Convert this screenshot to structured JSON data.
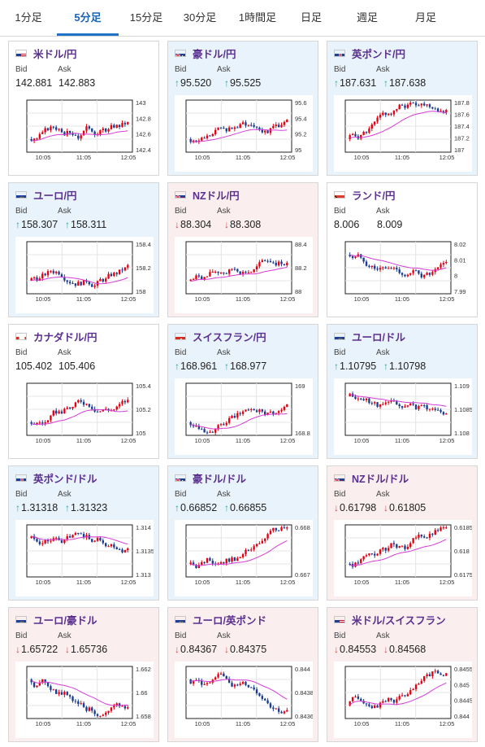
{
  "tabs": [
    {
      "label": "1分足",
      "active": false
    },
    {
      "label": "5分足",
      "active": true
    },
    {
      "label": "15分足",
      "active": false
    },
    {
      "label": "30分足",
      "active": false
    },
    {
      "label": "1時間足",
      "active": false
    },
    {
      "label": "日足",
      "active": false
    },
    {
      "label": "週足",
      "active": false
    },
    {
      "label": "月足",
      "active": false
    }
  ],
  "labels": {
    "bid": "Bid",
    "ask": "Ask"
  },
  "colors": {
    "title": "#5a2f8f",
    "up_arrow": "#2aa4a0",
    "down_arrow": "#d24a4a",
    "up_card": "#e9f3fb",
    "down_card": "#fbeeee",
    "candle_up": "#e60012",
    "candle_down": "#1a3d8f",
    "ma_line": "#d63cd6"
  },
  "pairs": [
    {
      "name": "米ドル/円",
      "flag": "us",
      "bid": "142.881",
      "ask": "142.883",
      "direction": "none",
      "chart": {
        "x_ticks": [
          "10:05",
          "11:05",
          "12:05"
        ],
        "y_ticks": [
          "143",
          "142.8",
          "142.6",
          "142.4"
        ]
      }
    },
    {
      "name": "豪ドル/円",
      "flag": "au",
      "bid": "95.520",
      "ask": "95.525",
      "direction": "up",
      "chart": {
        "x_ticks": [
          "10:05",
          "11:05",
          "12:05"
        ],
        "y_ticks": [
          "95.6",
          "95.4",
          "95.2",
          "95"
        ]
      }
    },
    {
      "name": "英ポンド/円",
      "flag": "gb",
      "bid": "187.631",
      "ask": "187.638",
      "direction": "up",
      "chart": {
        "x_ticks": [
          "10:05",
          "11:05",
          "12:05"
        ],
        "y_ticks": [
          "187.8",
          "187.6",
          "187.4",
          "187.2",
          "187"
        ]
      }
    },
    {
      "name": "ユーロ/円",
      "flag": "eu",
      "bid": "158.307",
      "ask": "158.311",
      "direction": "up",
      "chart": {
        "x_ticks": [
          "10:05",
          "11:05",
          "12:05"
        ],
        "y_ticks": [
          "158.4",
          "158.2",
          "158"
        ]
      }
    },
    {
      "name": "NZドル/円",
      "flag": "nz",
      "bid": "88.304",
      "ask": "88.308",
      "direction": "down",
      "chart": {
        "x_ticks": [
          "10:05",
          "11:05",
          "12:05"
        ],
        "y_ticks": [
          "88.4",
          "88.2",
          "88"
        ]
      }
    },
    {
      "name": "ランド/円",
      "flag": "za",
      "bid": "8.006",
      "ask": "8.009",
      "direction": "none",
      "chart": {
        "x_ticks": [
          "10:05",
          "11:05",
          "12:05"
        ],
        "y_ticks": [
          "8.02",
          "8.01",
          "8",
          "7.99"
        ]
      }
    },
    {
      "name": "カナダドル/円",
      "flag": "ca",
      "bid": "105.402",
      "ask": "105.406",
      "direction": "none",
      "chart": {
        "x_ticks": [
          "10:05",
          "11:05",
          "12:05"
        ],
        "y_ticks": [
          "105.4",
          "105.2",
          "105"
        ]
      }
    },
    {
      "name": "スイスフラン/円",
      "flag": "ch",
      "bid": "168.961",
      "ask": "168.977",
      "direction": "up",
      "chart": {
        "x_ticks": [
          "10:05",
          "11:05",
          "12:05"
        ],
        "y_ticks": [
          "169",
          "168.8"
        ]
      }
    },
    {
      "name": "ユーロ/ドル",
      "flag": "eu",
      "bid": "1.10795",
      "ask": "1.10798",
      "direction": "up",
      "chart": {
        "x_ticks": [
          "10:05",
          "11:05",
          "12:05"
        ],
        "y_ticks": [
          "1.109",
          "1.1085",
          "1.108"
        ]
      }
    },
    {
      "name": "英ポンド/ドル",
      "flag": "gb",
      "bid": "1.31318",
      "ask": "1.31323",
      "direction": "up",
      "chart": {
        "x_ticks": [
          "10:05",
          "11:05",
          "12:05"
        ],
        "y_ticks": [
          "1.314",
          "1.3135",
          "1.313"
        ]
      }
    },
    {
      "name": "豪ドル/ドル",
      "flag": "au",
      "bid": "0.66852",
      "ask": "0.66855",
      "direction": "up",
      "chart": {
        "x_ticks": [
          "10:05",
          "11:05",
          "12:05"
        ],
        "y_ticks": [
          "0.668",
          "0.667"
        ]
      }
    },
    {
      "name": "NZドル/ドル",
      "flag": "nz",
      "bid": "0.61798",
      "ask": "0.61805",
      "direction": "down",
      "chart": {
        "x_ticks": [
          "10:05",
          "11:05",
          "12:05"
        ],
        "y_ticks": [
          "0.6185",
          "0.618",
          "0.6175"
        ]
      }
    },
    {
      "name": "ユーロ/豪ドル",
      "flag": "eu",
      "bid": "1.65722",
      "ask": "1.65736",
      "direction": "down",
      "chart": {
        "x_ticks": [
          "10:05",
          "11:05",
          "12:05"
        ],
        "y_ticks": [
          "1.662",
          "1.66",
          "1.658"
        ]
      }
    },
    {
      "name": "ユーロ/英ポンド",
      "flag": "eu",
      "bid": "0.84367",
      "ask": "0.84375",
      "direction": "down",
      "chart": {
        "x_ticks": [
          "10:05",
          "11:05",
          "12:05"
        ],
        "y_ticks": [
          "0.844",
          "0.8438",
          "0.8436"
        ]
      }
    },
    {
      "name": "米ドル/スイスフラン",
      "flag": "us",
      "bid": "0.84553",
      "ask": "0.84568",
      "direction": "down",
      "chart": {
        "x_ticks": [
          "10:05",
          "11:05",
          "12:05"
        ],
        "y_ticks": [
          "0.8455",
          "0.845",
          "0.8445",
          "0.844"
        ]
      }
    }
  ]
}
